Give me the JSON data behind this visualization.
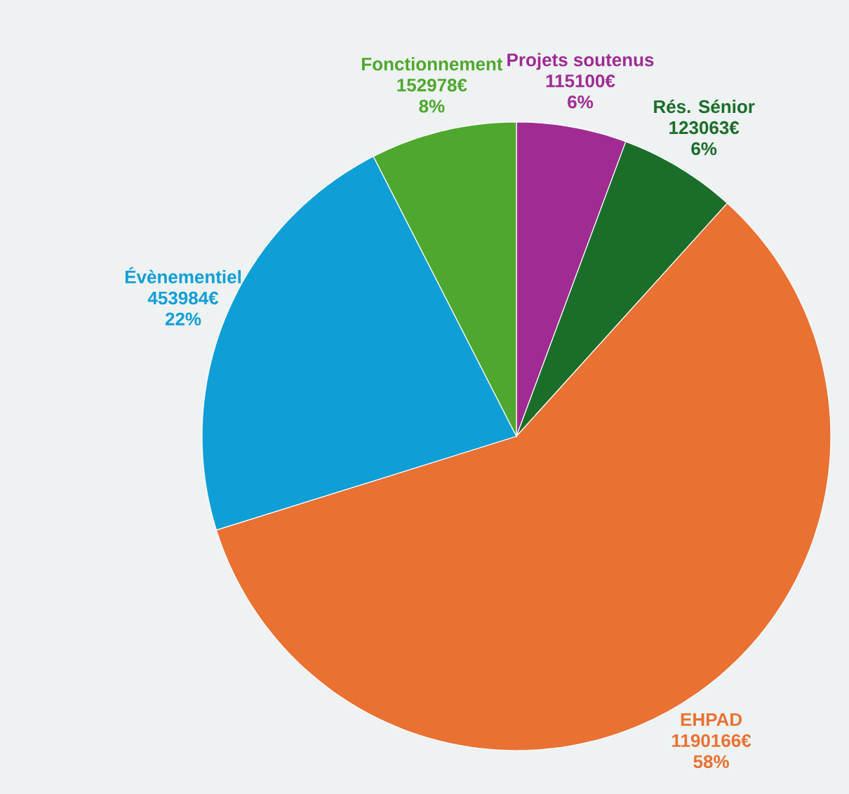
{
  "chart_data": {
    "type": "pie",
    "categories": [
      "Projets soutenus",
      "Rés. Sénior",
      "EHPAD",
      "Évènementiel",
      "Fonctionnement"
    ],
    "values": [
      115100,
      123063,
      1190166,
      453984,
      152978
    ],
    "colors": [
      "#a02b93",
      "#1b6e2a",
      "#e97132",
      "#0f9ed5",
      "#4ea72e"
    ],
    "value_labels": [
      "115100€",
      "123063€",
      "1190166€",
      "453984€",
      "152978€"
    ],
    "annotations": [
      "6%",
      "6%",
      "58%",
      "22%",
      "8%"
    ]
  }
}
